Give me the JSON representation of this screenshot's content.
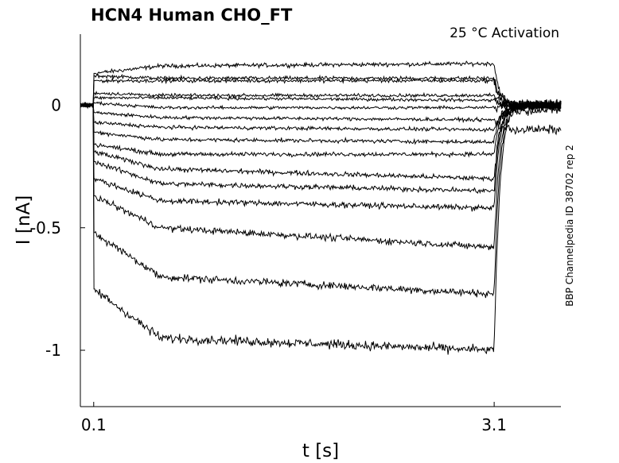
{
  "chart_data": {
    "type": "line",
    "title": "HCN4  Human  CHO_FT",
    "condition": "25 °C  Activation",
    "side_label": "BBP Channelpedia ID 38702 rep 2",
    "xlabel": "t [s]",
    "ylabel": "I [nA]",
    "xlim": [
      0.0,
      3.6
    ],
    "ylim": [
      -1.23,
      0.29
    ],
    "xticks": [
      "0.1",
      "3.1"
    ],
    "xtick_values": [
      0.1,
      3.1
    ],
    "yticks": [
      "-1",
      "-0.5",
      "0"
    ],
    "ytick_values": [
      -1,
      -0.5,
      0
    ],
    "grid": false,
    "line_color": "#000000",
    "step_start_s": 0.1,
    "step_end_s": 3.1,
    "series": [
      {
        "values": [
          0.0,
          0.13,
          0.16,
          0.17,
          0.0
        ]
      },
      {
        "values": [
          0.0,
          0.12,
          0.11,
          0.11,
          0.0
        ]
      },
      {
        "values": [
          0.0,
          0.1,
          0.1,
          0.1,
          0.0
        ]
      },
      {
        "values": [
          0.0,
          0.05,
          0.04,
          0.04,
          0.0
        ]
      },
      {
        "values": [
          0.0,
          0.03,
          0.03,
          0.02,
          0.0
        ]
      },
      {
        "values": [
          0.0,
          0.01,
          -0.01,
          -0.01,
          0.0
        ]
      },
      {
        "values": [
          0.0,
          -0.03,
          -0.05,
          -0.06,
          -0.1
        ]
      },
      {
        "values": [
          0.0,
          -0.07,
          -0.09,
          -0.1,
          -0.02
        ]
      },
      {
        "values": [
          0.0,
          -0.11,
          -0.14,
          -0.15,
          0.0
        ]
      },
      {
        "values": [
          0.0,
          -0.16,
          -0.2,
          -0.2,
          0.0
        ]
      },
      {
        "values": [
          0.0,
          -0.19,
          -0.26,
          -0.3,
          0.0
        ]
      },
      {
        "values": [
          0.0,
          -0.23,
          -0.32,
          -0.35,
          0.0
        ]
      },
      {
        "values": [
          0.0,
          -0.3,
          -0.39,
          -0.42,
          0.0
        ]
      },
      {
        "values": [
          0.0,
          -0.37,
          -0.5,
          -0.58,
          0.0
        ]
      },
      {
        "values": [
          0.0,
          -0.52,
          -0.7,
          -0.77,
          0.0
        ]
      },
      {
        "values": [
          0.0,
          -0.75,
          -0.95,
          -1.0,
          0.0
        ]
      }
    ]
  }
}
